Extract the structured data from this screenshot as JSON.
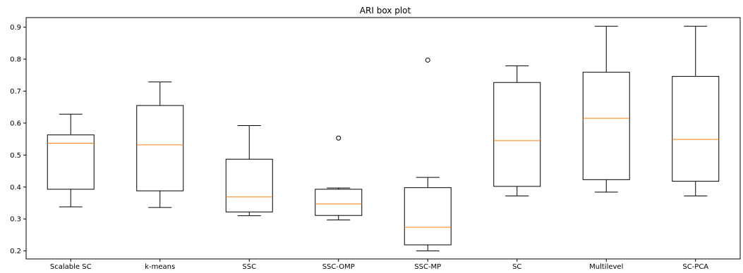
{
  "chart_data": {
    "type": "box",
    "title": "ARI box plot",
    "xlabel": "",
    "ylabel": "",
    "ylim": [
      0.175,
      0.93
    ],
    "yticks": [
      0.2,
      0.3,
      0.4,
      0.5,
      0.6,
      0.7,
      0.8,
      0.9
    ],
    "yticklabels": [
      "0.2",
      "0.3",
      "0.4",
      "0.5",
      "0.6",
      "0.7",
      "0.8",
      "0.9"
    ],
    "grid": false,
    "colors": {
      "box": "#000000",
      "median": "#ff7f0e",
      "axis": "#000000"
    },
    "categories": [
      "Scalable SC",
      "k-means",
      "SSC",
      "SSC-OMP",
      "SSC-MP",
      "SC",
      "Multilevel",
      "SC-PCA"
    ],
    "boxes": [
      {
        "whisker_low": 0.338,
        "q1": 0.393,
        "median": 0.537,
        "q3": 0.563,
        "whisker_high": 0.628,
        "outliers": []
      },
      {
        "whisker_low": 0.336,
        "q1": 0.388,
        "median": 0.532,
        "q3": 0.655,
        "whisker_high": 0.729,
        "outliers": []
      },
      {
        "whisker_low": 0.31,
        "q1": 0.322,
        "median": 0.369,
        "q3": 0.487,
        "whisker_high": 0.592,
        "outliers": []
      },
      {
        "whisker_low": 0.297,
        "q1": 0.311,
        "median": 0.347,
        "q3": 0.393,
        "whisker_high": 0.397,
        "outliers": [
          0.553
        ]
      },
      {
        "whisker_low": 0.2,
        "q1": 0.219,
        "median": 0.274,
        "q3": 0.398,
        "whisker_high": 0.43,
        "outliers": [
          0.797
        ]
      },
      {
        "whisker_low": 0.372,
        "q1": 0.402,
        "median": 0.545,
        "q3": 0.727,
        "whisker_high": 0.779,
        "outliers": []
      },
      {
        "whisker_low": 0.384,
        "q1": 0.423,
        "median": 0.615,
        "q3": 0.759,
        "whisker_high": 0.903,
        "outliers": []
      },
      {
        "whisker_low": 0.372,
        "q1": 0.418,
        "median": 0.549,
        "q3": 0.746,
        "whisker_high": 0.903,
        "outliers": []
      }
    ]
  }
}
